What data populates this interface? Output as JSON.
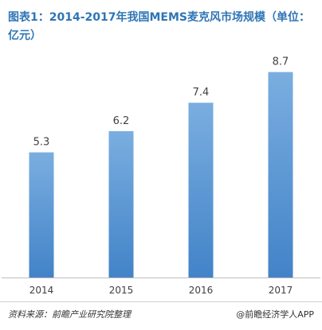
{
  "chart_data": {
    "type": "bar",
    "title": "图表1：2014-2017年我国MEMS麦克风市场规模（单位：亿元）",
    "categories": [
      "2014",
      "2015",
      "2016",
      "2017"
    ],
    "values": [
      5.3,
      6.2,
      7.4,
      8.7
    ],
    "data_labels": [
      "5.3",
      "6.2",
      "7.4",
      "8.7"
    ],
    "xlabel": "",
    "ylabel": "",
    "ylim": [
      0,
      10
    ],
    "grid": false,
    "legend": "none",
    "colors": {
      "bar_top": "#7aaee0",
      "bar_bottom": "#4283c8",
      "title": "#2f75b5",
      "axis": "#bfbfbf",
      "text": "#404040"
    }
  },
  "footer": {
    "source": "资料来源：前瞻产业研究院整理",
    "credit": "@前瞻经济学人APP"
  }
}
